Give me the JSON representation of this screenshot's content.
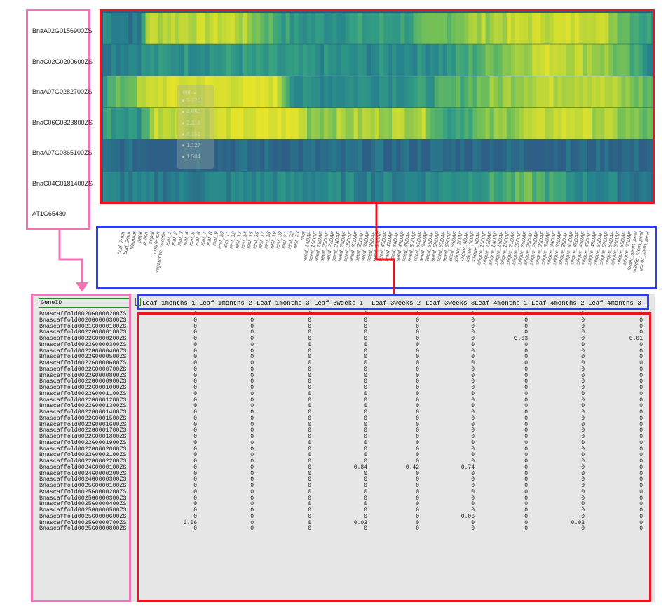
{
  "genes": [
    "BnaA02G0156900ZS",
    "BnaC02G0200600ZS",
    "BnaA07G0282700ZS",
    "BnaC06G0323800ZS",
    "BnaA07G0365100ZS",
    "BnaC04G0181400ZS",
    "AT1G65480"
  ],
  "tooltip": {
    "title": "leaf_2",
    "rows": [
      "5.126",
      "4.850",
      "2.318",
      "4.151",
      "1.127",
      "1.584"
    ]
  },
  "tissues": [
    "bud_2mm",
    "bud_2mm",
    "filament",
    "petal",
    "pollen",
    "sepal",
    "cotyledon",
    "vegetative_rosette",
    "leaf_1",
    "leaf_2",
    "leaf_3",
    "leaf_4",
    "leaf_5",
    "leaf_6",
    "leaf_7",
    "leaf_8",
    "leaf_9",
    "leaf_10",
    "leaf_11",
    "leaf_12",
    "leaf_13",
    "leaf_14",
    "leaf_15",
    "leaf_16",
    "leaf_17",
    "leaf_18",
    "leaf_19",
    "leaf_20",
    "leaf_21",
    "leaf_22",
    "leaf_23",
    "root",
    "seed_14DAF",
    "seed_16DAF",
    "seed_18DAF",
    "seed_20DAF",
    "seed_22DAF",
    "seed_24DAF",
    "seed_26DAF",
    "seed_28DAF",
    "seed_30DAF",
    "seed_32DAF",
    "seed_34DAF",
    "seed_36DAF",
    "seed_38DAF",
    "seed_40DAF",
    "seed_42DAF",
    "seed_44DAF",
    "seed_46DAF",
    "seed_48DAF",
    "seed_50DAF",
    "seed_52DAF",
    "seed_54DAF",
    "seed_56DAF",
    "seed_58DAF",
    "seed_60DAF",
    "seed_62DAF",
    "seed_64DAF",
    "silique_2DAF",
    "silique_4DAF",
    "silique_6DAF",
    "silique_8DAF",
    "silique_10DAF",
    "silique_12DAF",
    "silique_14DAF",
    "silique_16DAF",
    "silique_18DAF",
    "silique_20DAF",
    "silique_22DAF",
    "silique_24DAF",
    "silique_26DAF",
    "silique_28DAF",
    "silique_30DAF",
    "silique_32DAF",
    "silique_34DAF",
    "silique_36DAF",
    "silique_38DAF",
    "silique_40DAF",
    "silique_42DAF",
    "silique_44DAF",
    "silique_46DAF",
    "silique_48DAF",
    "silique_50DAF",
    "silique_52DAF",
    "silique_54DAF",
    "silique_56DAF",
    "silique_58DAF",
    "silique_60DAF",
    "lower_stem_peel",
    "middle_stem_peel",
    "upper_stem_peel"
  ],
  "sheet": {
    "id_header": "GeneID",
    "columns": [
      "Leaf_1months_1",
      "Leaf_1months_2",
      "Leaf_1months_3",
      "Leaf_3weeks_1",
      "Leaf_3weeks_2",
      "Leaf_3weeks_3",
      "Leaf_4months_1",
      "Leaf_4months_2",
      "Leaf_4months_3"
    ],
    "rows": [
      {
        "id": "Bnascaffold0020G0000200ZS",
        "v": [
          "0",
          "0",
          "0",
          "0",
          "0",
          "0",
          "0",
          "0",
          "0"
        ]
      },
      {
        "id": "Bnascaffold0020G0000300ZS",
        "v": [
          "0",
          "0",
          "0",
          "0",
          "0",
          "0",
          "0",
          "0",
          "0"
        ]
      },
      {
        "id": "Bnascaffold0021G0000100ZS",
        "v": [
          "0",
          "0",
          "0",
          "0",
          "0",
          "0",
          "0",
          "0",
          "0"
        ]
      },
      {
        "id": "Bnascaffold0022G0000100ZS",
        "v": [
          "0",
          "0",
          "0",
          "0",
          "0",
          "0",
          "0",
          "0",
          "0"
        ]
      },
      {
        "id": "Bnascaffold0022G0000200ZS",
        "v": [
          "0",
          "0",
          "0",
          "0",
          "0",
          "0",
          "0.03",
          "0",
          "0.01"
        ]
      },
      {
        "id": "Bnascaffold0022G0000300ZS",
        "v": [
          "0",
          "0",
          "0",
          "0",
          "0",
          "0",
          "0",
          "0",
          "0"
        ]
      },
      {
        "id": "Bnascaffold0022G0000400ZS",
        "v": [
          "0",
          "0",
          "0",
          "0",
          "0",
          "0",
          "0",
          "0",
          "0"
        ]
      },
      {
        "id": "Bnascaffold0022G0000500ZS",
        "v": [
          "0",
          "0",
          "0",
          "0",
          "0",
          "0",
          "0",
          "0",
          "0"
        ]
      },
      {
        "id": "Bnascaffold0022G0000600ZS",
        "v": [
          "0",
          "0",
          "0",
          "0",
          "0",
          "0",
          "0",
          "0",
          "0"
        ]
      },
      {
        "id": "Bnascaffold0022G0000700ZS",
        "v": [
          "0",
          "0",
          "0",
          "0",
          "0",
          "0",
          "0",
          "0",
          "0"
        ]
      },
      {
        "id": "Bnascaffold0022G0000800ZS",
        "v": [
          "0",
          "0",
          "0",
          "0",
          "0",
          "0",
          "0",
          "0",
          "0"
        ]
      },
      {
        "id": "Bnascaffold0022G0000900ZS",
        "v": [
          "0",
          "0",
          "0",
          "0",
          "0",
          "0",
          "0",
          "0",
          "0"
        ]
      },
      {
        "id": "Bnascaffold0022G0001000ZS",
        "v": [
          "0",
          "0",
          "0",
          "0",
          "0",
          "0",
          "0",
          "0",
          "0"
        ]
      },
      {
        "id": "Bnascaffold0022G0001100ZS",
        "v": [
          "0",
          "0",
          "0",
          "0",
          "0",
          "0",
          "0",
          "0",
          "0"
        ]
      },
      {
        "id": "Bnascaffold0022G0001200ZS",
        "v": [
          "0",
          "0",
          "0",
          "0",
          "0",
          "0",
          "0",
          "0",
          "0"
        ]
      },
      {
        "id": "Bnascaffold0022G0001300ZS",
        "v": [
          "0",
          "0",
          "0",
          "0",
          "0",
          "0",
          "0",
          "0",
          "0"
        ]
      },
      {
        "id": "Bnascaffold0022G0001400ZS",
        "v": [
          "0",
          "0",
          "0",
          "0",
          "0",
          "0",
          "0",
          "0",
          "0"
        ]
      },
      {
        "id": "Bnascaffold0022G0001500ZS",
        "v": [
          "0",
          "0",
          "0",
          "0",
          "0",
          "0",
          "0",
          "0",
          "0"
        ]
      },
      {
        "id": "Bnascaffold0022G0001600ZS",
        "v": [
          "0",
          "0",
          "0",
          "0",
          "0",
          "0",
          "0",
          "0",
          "0"
        ]
      },
      {
        "id": "Bnascaffold0022G0001700ZS",
        "v": [
          "0",
          "0",
          "0",
          "0",
          "0",
          "0",
          "0",
          "0",
          "0"
        ]
      },
      {
        "id": "Bnascaffold0022G0001800ZS",
        "v": [
          "0",
          "0",
          "0",
          "0",
          "0",
          "0",
          "0",
          "0",
          "0"
        ]
      },
      {
        "id": "Bnascaffold0022G0001900ZS",
        "v": [
          "0",
          "0",
          "0",
          "0",
          "0",
          "0",
          "0",
          "0",
          "0"
        ]
      },
      {
        "id": "Bnascaffold0022G0002000ZS",
        "v": [
          "0",
          "0",
          "0",
          "0",
          "0",
          "0",
          "0",
          "0",
          "0"
        ]
      },
      {
        "id": "Bnascaffold0022G0002100ZS",
        "v": [
          "0",
          "0",
          "0",
          "0",
          "0",
          "0",
          "0",
          "0",
          "0"
        ]
      },
      {
        "id": "Bnascaffold0022G0002200ZS",
        "v": [
          "0",
          "0",
          "0",
          "0",
          "0",
          "0",
          "0",
          "0",
          "0"
        ]
      },
      {
        "id": "Bnascaffold0024G0000100ZS",
        "v": [
          "0",
          "0",
          "0",
          "0.84",
          "0.42",
          "0.74",
          "0",
          "0",
          "0"
        ]
      },
      {
        "id": "Bnascaffold0024G0000200ZS",
        "v": [
          "0",
          "0",
          "0",
          "0",
          "0",
          "0",
          "0",
          "0",
          "0"
        ]
      },
      {
        "id": "Bnascaffold0024G0000300ZS",
        "v": [
          "0",
          "0",
          "0",
          "0",
          "0",
          "0",
          "0",
          "0",
          "0"
        ]
      },
      {
        "id": "Bnascaffold0025G0000100ZS",
        "v": [
          "0",
          "0",
          "0",
          "0",
          "0",
          "0",
          "0",
          "0",
          "0"
        ]
      },
      {
        "id": "Bnascaffold0025G0000200ZS",
        "v": [
          "0",
          "0",
          "0",
          "0",
          "0",
          "0",
          "0",
          "0",
          "0"
        ]
      },
      {
        "id": "Bnascaffold0025G0000300ZS",
        "v": [
          "0",
          "0",
          "0",
          "0",
          "0",
          "0",
          "0",
          "0",
          "0"
        ]
      },
      {
        "id": "Bnascaffold0025G0000400ZS",
        "v": [
          "0",
          "0",
          "0",
          "0",
          "0",
          "0",
          "0",
          "0",
          "0"
        ]
      },
      {
        "id": "Bnascaffold0025G0000500ZS",
        "v": [
          "0",
          "0",
          "0",
          "0",
          "0",
          "0",
          "0",
          "0",
          "0"
        ]
      },
      {
        "id": "Bnascaffold0025G0000600ZS",
        "v": [
          "0",
          "0",
          "0",
          "0",
          "0",
          "0.06",
          "0",
          "0",
          "0"
        ]
      },
      {
        "id": "Bnascaffold0025G0000700ZS",
        "v": [
          "0.06",
          "0",
          "0",
          "0.03",
          "0",
          "0",
          "0",
          "0.02",
          "0"
        ]
      },
      {
        "id": "Bnascaffold0025G0000800ZS",
        "v": [
          "0",
          "0",
          "0",
          "0",
          "0",
          "0",
          "0",
          "0",
          "0"
        ]
      }
    ]
  },
  "colors": {
    "box_red": "#e8141e",
    "box_blue": "#2f3fe0",
    "box_pink": "#f472b6",
    "cell_green": "#2a8a2a",
    "heat_low": "#2e5f86",
    "heat_high": "#e6e32a"
  }
}
